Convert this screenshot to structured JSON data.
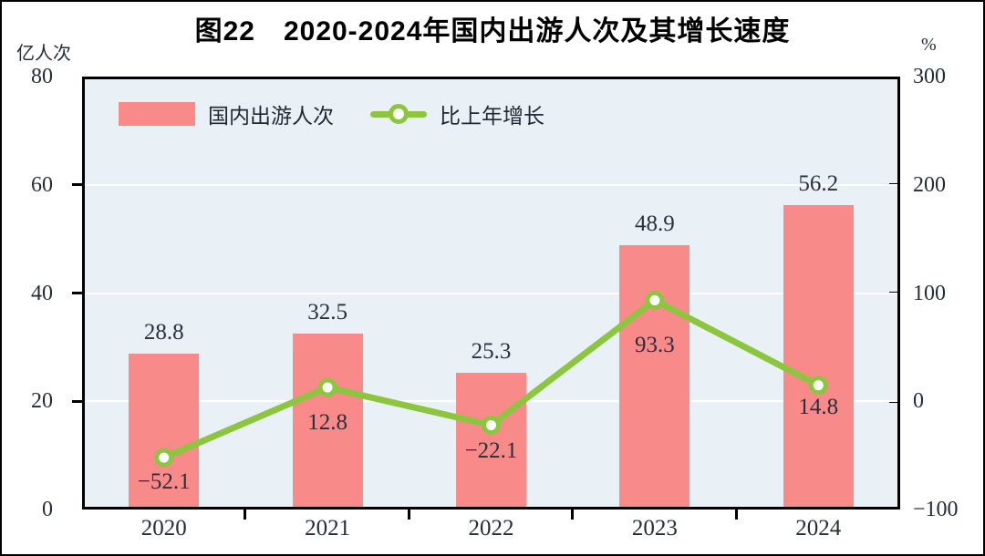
{
  "chart_data": {
    "type": "combo",
    "subtype": "bar+line",
    "title": "图22　2020-2024年国内出游人次及其增长速度",
    "categories": [
      "2020",
      "2021",
      "2022",
      "2023",
      "2024"
    ],
    "series": [
      {
        "name": "国内出游人次",
        "type": "bar",
        "axis": "left",
        "color": "#F98A8A",
        "values": [
          28.8,
          32.5,
          25.3,
          48.9,
          56.2
        ]
      },
      {
        "name": "比上年增长",
        "type": "line",
        "axis": "right",
        "color": "#8CC63E",
        "marker": "white-circle",
        "values": [
          -52.1,
          12.8,
          -22.1,
          93.3,
          14.8
        ]
      }
    ],
    "left_axis": {
      "label": "亿人次",
      "range": [
        0,
        80
      ],
      "ticks": [
        0,
        20,
        40,
        60,
        80
      ]
    },
    "right_axis": {
      "label": "%",
      "range": [
        -100,
        300
      ],
      "ticks": [
        -100,
        0,
        100,
        200,
        300
      ]
    },
    "grid": true,
    "legend_position": "top-left-inside",
    "plot_background": "#E9F1F6",
    "gridline_color": "#FFFFFF",
    "text_color": "#262B38"
  }
}
